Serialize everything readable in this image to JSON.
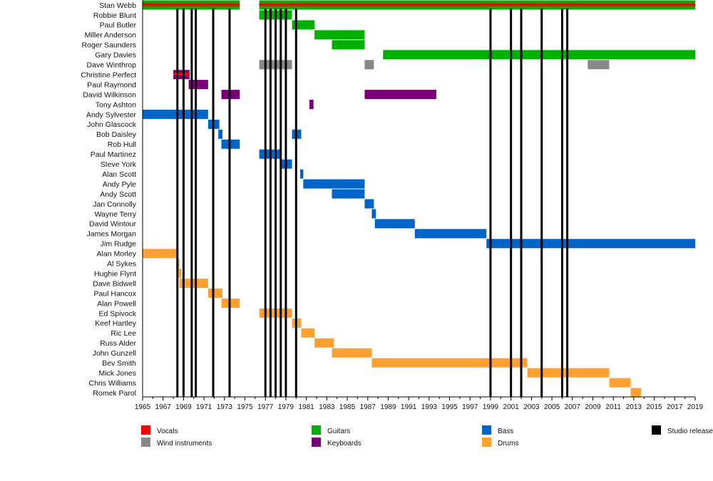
{
  "chart_data": {
    "type": "timeline",
    "title": "",
    "xlim": [
      1965,
      2019
    ],
    "x_ticks": [
      1965,
      1967,
      1969,
      1971,
      1973,
      1975,
      1977,
      1979,
      1981,
      1983,
      1985,
      1987,
      1989,
      1991,
      1993,
      1995,
      1997,
      1999,
      2001,
      2003,
      2005,
      2007,
      2009,
      2011,
      2013,
      2015,
      2017,
      2019
    ],
    "colors": {
      "vocals": "#ff0000",
      "guitars": "#00b000",
      "bass": "#0064c8",
      "keyboards": "#780078",
      "wind": "#888888",
      "drums": "#ffa030",
      "studio": "#000000"
    },
    "legend": [
      {
        "key": "vocals",
        "label": "Vocals"
      },
      {
        "key": "wind",
        "label": "Wind instruments"
      },
      {
        "key": "guitars",
        "label": "Guitars"
      },
      {
        "key": "keyboards",
        "label": "Keyboards"
      },
      {
        "key": "bass",
        "label": "Bass"
      },
      {
        "key": "drums",
        "label": "Drums"
      },
      {
        "key": "studio",
        "label": "Studio release"
      }
    ],
    "members": [
      {
        "name": "Stan Webb",
        "bars": [
          {
            "role": "guitars",
            "start": 1965,
            "end": 1974.5,
            "stripe": "vocals"
          },
          {
            "role": "guitars",
            "start": 1976.4,
            "end": 2019,
            "stripe": "vocals"
          }
        ]
      },
      {
        "name": "Robbie Blunt",
        "bars": [
          {
            "role": "guitars",
            "start": 1976.4,
            "end": 1979.6
          }
        ]
      },
      {
        "name": "Paul Butler",
        "bars": [
          {
            "role": "guitars",
            "start": 1979.6,
            "end": 1981.8
          }
        ]
      },
      {
        "name": "Miller Anderson",
        "bars": [
          {
            "role": "guitars",
            "start": 1981.8,
            "end": 1986.7
          }
        ]
      },
      {
        "name": "Roger Saunders",
        "bars": [
          {
            "role": "guitars",
            "start": 1983.5,
            "end": 1986.7
          }
        ]
      },
      {
        "name": "Gary Davies",
        "bars": [
          {
            "role": "guitars",
            "start": 1988.5,
            "end": 2019
          }
        ]
      },
      {
        "name": "Dave Winthrop",
        "bars": [
          {
            "role": "wind",
            "start": 1976.4,
            "end": 1979.6
          },
          {
            "role": "wind",
            "start": 1986.7,
            "end": 1987.6
          },
          {
            "role": "wind",
            "start": 2008.5,
            "end": 2010.6
          }
        ]
      },
      {
        "name": "Christine Perfect",
        "bars": [
          {
            "role": "keyboards",
            "start": 1968,
            "end": 1969.6,
            "stripe": "vocals"
          }
        ]
      },
      {
        "name": "Paul Raymond",
        "bars": [
          {
            "role": "keyboards",
            "start": 1969.5,
            "end": 1971.4
          }
        ]
      },
      {
        "name": "David Wilkinson",
        "bars": [
          {
            "role": "keyboards",
            "start": 1972.7,
            "end": 1974.5
          },
          {
            "role": "keyboards",
            "start": 1986.7,
            "end": 1993.7
          }
        ]
      },
      {
        "name": "Tony Ashton",
        "bars": [
          {
            "role": "keyboards",
            "start": 1981.3,
            "end": 1981.7
          }
        ]
      },
      {
        "name": "Andy Sylvester",
        "bars": [
          {
            "role": "bass",
            "start": 1965,
            "end": 1971.4
          }
        ]
      },
      {
        "name": "John Glascock",
        "bars": [
          {
            "role": "bass",
            "start": 1971.4,
            "end": 1972.5
          }
        ]
      },
      {
        "name": "Bob Daisley",
        "bars": [
          {
            "role": "bass",
            "start": 1972.4,
            "end": 1972.8
          },
          {
            "role": "bass",
            "start": 1979.6,
            "end": 1980.5
          }
        ]
      },
      {
        "name": "Rob Hull",
        "bars": [
          {
            "role": "bass",
            "start": 1972.7,
            "end": 1974.5
          }
        ]
      },
      {
        "name": "Paul Martinez",
        "bars": [
          {
            "role": "bass",
            "start": 1976.4,
            "end": 1978.5
          }
        ]
      },
      {
        "name": "Steve York",
        "bars": [
          {
            "role": "bass",
            "start": 1978.5,
            "end": 1979.6
          }
        ]
      },
      {
        "name": "Alan Scott",
        "bars": [
          {
            "role": "bass",
            "start": 1980.4,
            "end": 1980.7
          }
        ]
      },
      {
        "name": "Andy Pyle",
        "bars": [
          {
            "role": "bass",
            "start": 1980.7,
            "end": 1986.7
          }
        ]
      },
      {
        "name": "Andy Scott",
        "bars": [
          {
            "role": "bass",
            "start": 1983.5,
            "end": 1986.7
          }
        ]
      },
      {
        "name": "Jan Connolly",
        "bars": [
          {
            "role": "bass",
            "start": 1986.7,
            "end": 1987.6
          }
        ]
      },
      {
        "name": "Wayne Terry",
        "bars": [
          {
            "role": "bass",
            "start": 1987.4,
            "end": 1987.8
          }
        ]
      },
      {
        "name": "David Wintour",
        "bars": [
          {
            "role": "bass",
            "start": 1987.7,
            "end": 1991.6
          }
        ]
      },
      {
        "name": "James Morgan",
        "bars": [
          {
            "role": "bass",
            "start": 1991.6,
            "end": 1998.6
          }
        ]
      },
      {
        "name": "Jim Rudge",
        "bars": [
          {
            "role": "bass",
            "start": 1998.6,
            "end": 2019
          }
        ]
      },
      {
        "name": "Alan Morley",
        "bars": [
          {
            "role": "drums",
            "start": 1965,
            "end": 1968.4
          }
        ]
      },
      {
        "name": "Al Sykes",
        "bars": [
          {
            "role": "drums",
            "start": 1968.3,
            "end": 1968.6
          }
        ]
      },
      {
        "name": "Hughie Flynt",
        "bars": [
          {
            "role": "drums",
            "start": 1968.5,
            "end": 1968.8
          }
        ]
      },
      {
        "name": "Dave Bidwell",
        "bars": [
          {
            "role": "drums",
            "start": 1968.6,
            "end": 1971.4
          }
        ]
      },
      {
        "name": "Paul Hancox",
        "bars": [
          {
            "role": "drums",
            "start": 1971.4,
            "end": 1972.8
          }
        ]
      },
      {
        "name": "Alan Powell",
        "bars": [
          {
            "role": "drums",
            "start": 1972.7,
            "end": 1974.5
          }
        ]
      },
      {
        "name": "Ed Spivock",
        "bars": [
          {
            "role": "drums",
            "start": 1976.4,
            "end": 1979.6
          }
        ]
      },
      {
        "name": "Keef Hartley",
        "bars": [
          {
            "role": "drums",
            "start": 1979.6,
            "end": 1980.5
          }
        ]
      },
      {
        "name": "Ric Lee",
        "bars": [
          {
            "role": "drums",
            "start": 1980.5,
            "end": 1981.8
          }
        ]
      },
      {
        "name": "Russ Alder",
        "bars": [
          {
            "role": "drums",
            "start": 1981.8,
            "end": 1983.7
          }
        ]
      },
      {
        "name": "John Gunzell",
        "bars": [
          {
            "role": "drums",
            "start": 1983.5,
            "end": 1987.4
          }
        ]
      },
      {
        "name": "Bev Smith",
        "bars": [
          {
            "role": "drums",
            "start": 1987.4,
            "end": 2002.6
          }
        ]
      },
      {
        "name": "Mick Jones",
        "bars": [
          {
            "role": "drums",
            "start": 2002.6,
            "end": 2010.6
          }
        ]
      },
      {
        "name": "Chris Williams",
        "bars": [
          {
            "role": "drums",
            "start": 2010.6,
            "end": 2012.7
          }
        ]
      },
      {
        "name": "Romek Parol",
        "bars": [
          {
            "role": "drums",
            "start": 2012.7,
            "end": 2013.7
          }
        ]
      }
    ],
    "studio_releases": [
      1968.4,
      1969.0,
      1969.8,
      1970.2,
      1971.9,
      1973.5,
      1977.0,
      1977.5,
      1978.0,
      1978.5,
      1979.0,
      1980.0,
      1999.0,
      2001.0,
      2002.0,
      2004.0,
      2006.0,
      2006.5
    ]
  }
}
